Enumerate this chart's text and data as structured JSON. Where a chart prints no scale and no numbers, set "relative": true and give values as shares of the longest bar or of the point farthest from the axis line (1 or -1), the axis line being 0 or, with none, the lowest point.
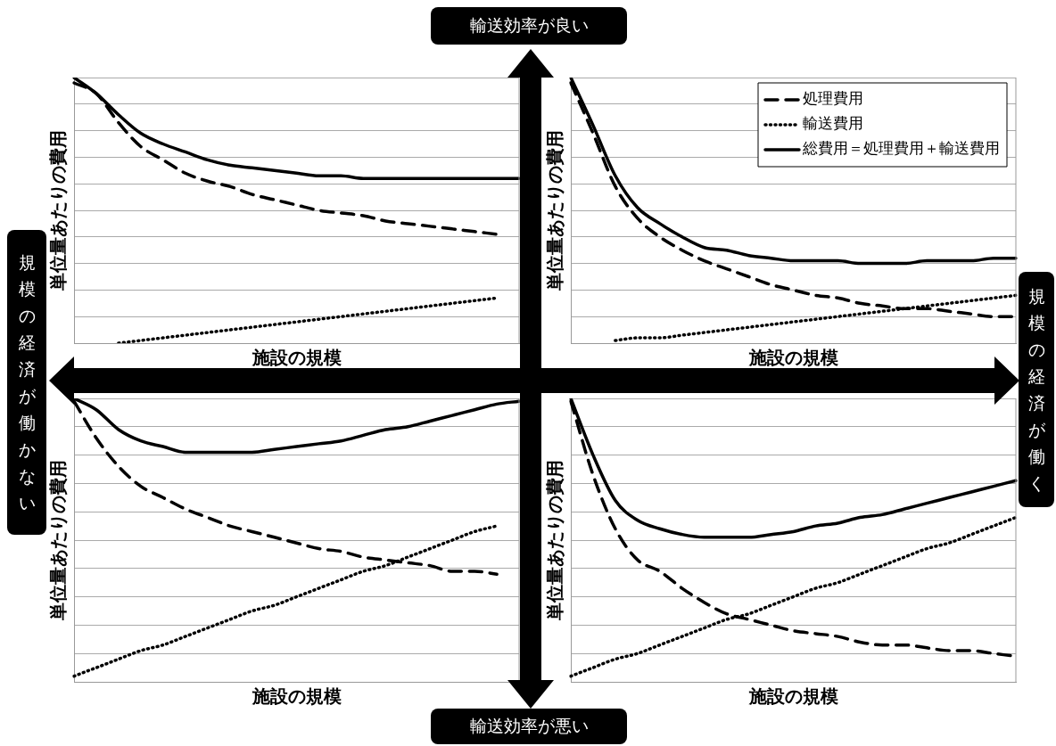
{
  "chart_data": [
    {
      "type": "line",
      "relative": true,
      "xlabel": "施設の規模",
      "ylabel": "単位量あたりの費用",
      "grid": "y",
      "legend": false,
      "categories": [
        null,
        null,
        null,
        null,
        null,
        null,
        null,
        null,
        null,
        null,
        null,
        null,
        null,
        null,
        null,
        null,
        null,
        null,
        null,
        null,
        null
      ],
      "series": [
        {
          "color": "#000000",
          "line_style": "dashed",
          "values": [
            0.98,
            0.94,
            0.83,
            0.74,
            0.69,
            0.64,
            0.61,
            0.59,
            0.56,
            0.54,
            0.52,
            0.5,
            0.49,
            0.48,
            0.46,
            0.45,
            0.44,
            0.43,
            0.42,
            0.41,
            null
          ]
        },
        {
          "color": "#000000",
          "line_style": "dotted",
          "values": [
            null,
            null,
            0.0,
            0.01,
            0.02,
            0.03,
            0.04,
            0.05,
            0.06,
            0.07,
            0.08,
            0.09,
            0.1,
            0.11,
            0.12,
            0.13,
            0.14,
            0.15,
            0.16,
            0.17,
            null
          ]
        },
        {
          "color": "#000000",
          "line_style": "solid",
          "values": [
            1,
            0.94,
            0.86,
            0.79,
            0.75,
            0.72,
            0.69,
            0.67,
            0.66,
            0.65,
            0.64,
            0.63,
            0.63,
            0.62,
            0.62,
            0.62,
            0.62,
            0.62,
            0.62,
            0.62,
            0.62
          ]
        }
      ]
    },
    {
      "type": "line",
      "relative": true,
      "xlabel": "施設の規模",
      "ylabel": "単位量あたりの費用",
      "grid": "y",
      "legend": "top right",
      "categories": [
        null,
        null,
        null,
        null,
        null,
        null,
        null,
        null,
        null,
        null,
        null,
        null,
        null,
        null,
        null,
        null,
        null,
        null,
        null,
        null,
        null
      ],
      "series": [
        {
          "name": "処理費用",
          "color": "#000000",
          "line_style": "dashed",
          "values": [
            0.98,
            0.79,
            0.59,
            0.47,
            0.4,
            0.35,
            0.31,
            0.28,
            0.25,
            0.22,
            0.2,
            0.18,
            0.17,
            0.15,
            0.14,
            0.13,
            0.13,
            0.12,
            0.11,
            0.1,
            0.1
          ]
        },
        {
          "name": "輸送費用",
          "color": "#000000",
          "line_style": "dotted",
          "values": [
            null,
            null,
            0.01,
            0.02,
            0.02,
            0.03,
            0.04,
            0.05,
            0.06,
            0.07,
            0.08,
            0.09,
            0.1,
            0.11,
            0.12,
            0.13,
            0.14,
            0.15,
            0.16,
            0.17,
            0.18
          ]
        },
        {
          "name": "総費用＝処理費用＋輸送費用",
          "color": "#000000",
          "line_style": "solid",
          "values": [
            1,
            0.82,
            0.63,
            0.51,
            0.45,
            0.4,
            0.36,
            0.35,
            0.33,
            0.32,
            0.31,
            0.31,
            0.31,
            0.3,
            0.3,
            0.3,
            0.31,
            0.31,
            0.31,
            0.32,
            0.32
          ]
        }
      ]
    },
    {
      "type": "line",
      "relative": true,
      "xlabel": "施設の規模",
      "ylabel": "単位量あたりの費用",
      "grid": "y",
      "legend": false,
      "categories": [
        null,
        null,
        null,
        null,
        null,
        null,
        null,
        null,
        null,
        null,
        null,
        null,
        null,
        null,
        null,
        null,
        null,
        null,
        null,
        null,
        null
      ],
      "series": [
        {
          "color": "#000000",
          "line_style": "dashed",
          "values": [
            0.99,
            0.86,
            0.76,
            0.69,
            0.65,
            0.61,
            0.58,
            0.55,
            0.53,
            0.51,
            0.49,
            0.47,
            0.46,
            0.44,
            0.43,
            0.42,
            0.41,
            0.39,
            0.39,
            0.38,
            null
          ]
        },
        {
          "color": "#000000",
          "line_style": "dotted",
          "values": [
            0.02,
            0.05,
            0.08,
            0.11,
            0.13,
            0.16,
            0.19,
            0.22,
            0.25,
            0.27,
            0.3,
            0.33,
            0.36,
            0.39,
            0.41,
            0.44,
            0.47,
            0.5,
            0.53,
            0.55,
            null
          ]
        },
        {
          "color": "#000000",
          "line_style": "solid",
          "values": [
            1,
            0.96,
            0.89,
            0.85,
            0.83,
            0.81,
            0.81,
            0.81,
            0.81,
            0.82,
            0.83,
            0.84,
            0.85,
            0.87,
            0.89,
            0.9,
            0.92,
            0.94,
            0.96,
            0.98,
            0.99
          ]
        }
      ]
    },
    {
      "type": "line",
      "relative": true,
      "xlabel": "施設の規模",
      "ylabel": "単位量あたりの費用",
      "grid": "y",
      "legend": false,
      "categories": [
        null,
        null,
        null,
        null,
        null,
        null,
        null,
        null,
        null,
        null,
        null,
        null,
        null,
        null,
        null,
        null,
        null,
        null,
        null,
        null,
        null
      ],
      "series": [
        {
          "color": "#000000",
          "line_style": "dashed",
          "values": [
            0.99,
            0.73,
            0.54,
            0.43,
            0.39,
            0.33,
            0.28,
            0.24,
            0.22,
            0.2,
            0.18,
            0.17,
            0.16,
            0.14,
            0.13,
            0.13,
            0.12,
            0.11,
            0.11,
            0.1,
            0.09
          ]
        },
        {
          "color": "#000000",
          "line_style": "dotted",
          "values": [
            0.02,
            0.05,
            0.08,
            0.1,
            0.13,
            0.16,
            0.19,
            0.22,
            0.24,
            0.27,
            0.3,
            0.33,
            0.35,
            0.38,
            0.41,
            0.44,
            0.47,
            0.49,
            0.52,
            0.55,
            0.58
          ]
        },
        {
          "color": "#000000",
          "line_style": "solid",
          "values": [
            1,
            0.8,
            0.64,
            0.57,
            0.54,
            0.52,
            0.51,
            0.51,
            0.51,
            0.52,
            0.53,
            0.55,
            0.56,
            0.58,
            0.59,
            0.61,
            0.63,
            0.65,
            0.67,
            0.69,
            0.71
          ]
        }
      ]
    },
    {
      "type": "other",
      "annotations": [
        "輸送効率が良い",
        "輸送効率が悪い",
        "規模の経済が働かない",
        "規模の経済が働く"
      ]
    }
  ]
}
